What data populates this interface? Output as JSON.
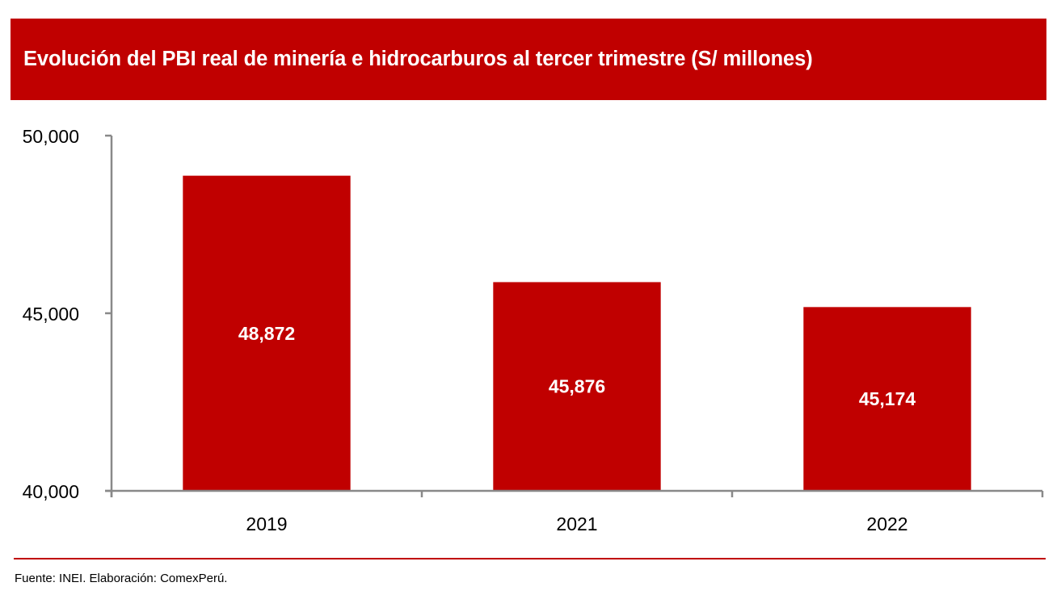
{
  "header": {
    "title": "Evolución del PBI real de minería e hidrocarburos al tercer trimestre (S/ millones)"
  },
  "footer": {
    "source": "Fuente: INEI. Elaboración: ComexPerú."
  },
  "colors": {
    "brand": "#C00000",
    "bar": "#C00000",
    "axis": "#898989",
    "label_on_bar": "#FFFFFF"
  },
  "chart_data": {
    "type": "bar",
    "title": "Evolución del PBI real de minería e hidrocarburos al tercer trimestre (S/ millones)",
    "xlabel": "",
    "ylabel": "",
    "categories": [
      "2019",
      "2021",
      "2022"
    ],
    "values": [
      48872,
      45876,
      45174
    ],
    "value_labels": [
      "48,872",
      "45,876",
      "45,174"
    ],
    "ylim": [
      40000,
      50000
    ],
    "yticks": [
      40000,
      45000,
      50000
    ],
    "ytick_labels": [
      "40,000",
      "45,000",
      "50,000"
    ],
    "grid": false,
    "legend": "none"
  }
}
